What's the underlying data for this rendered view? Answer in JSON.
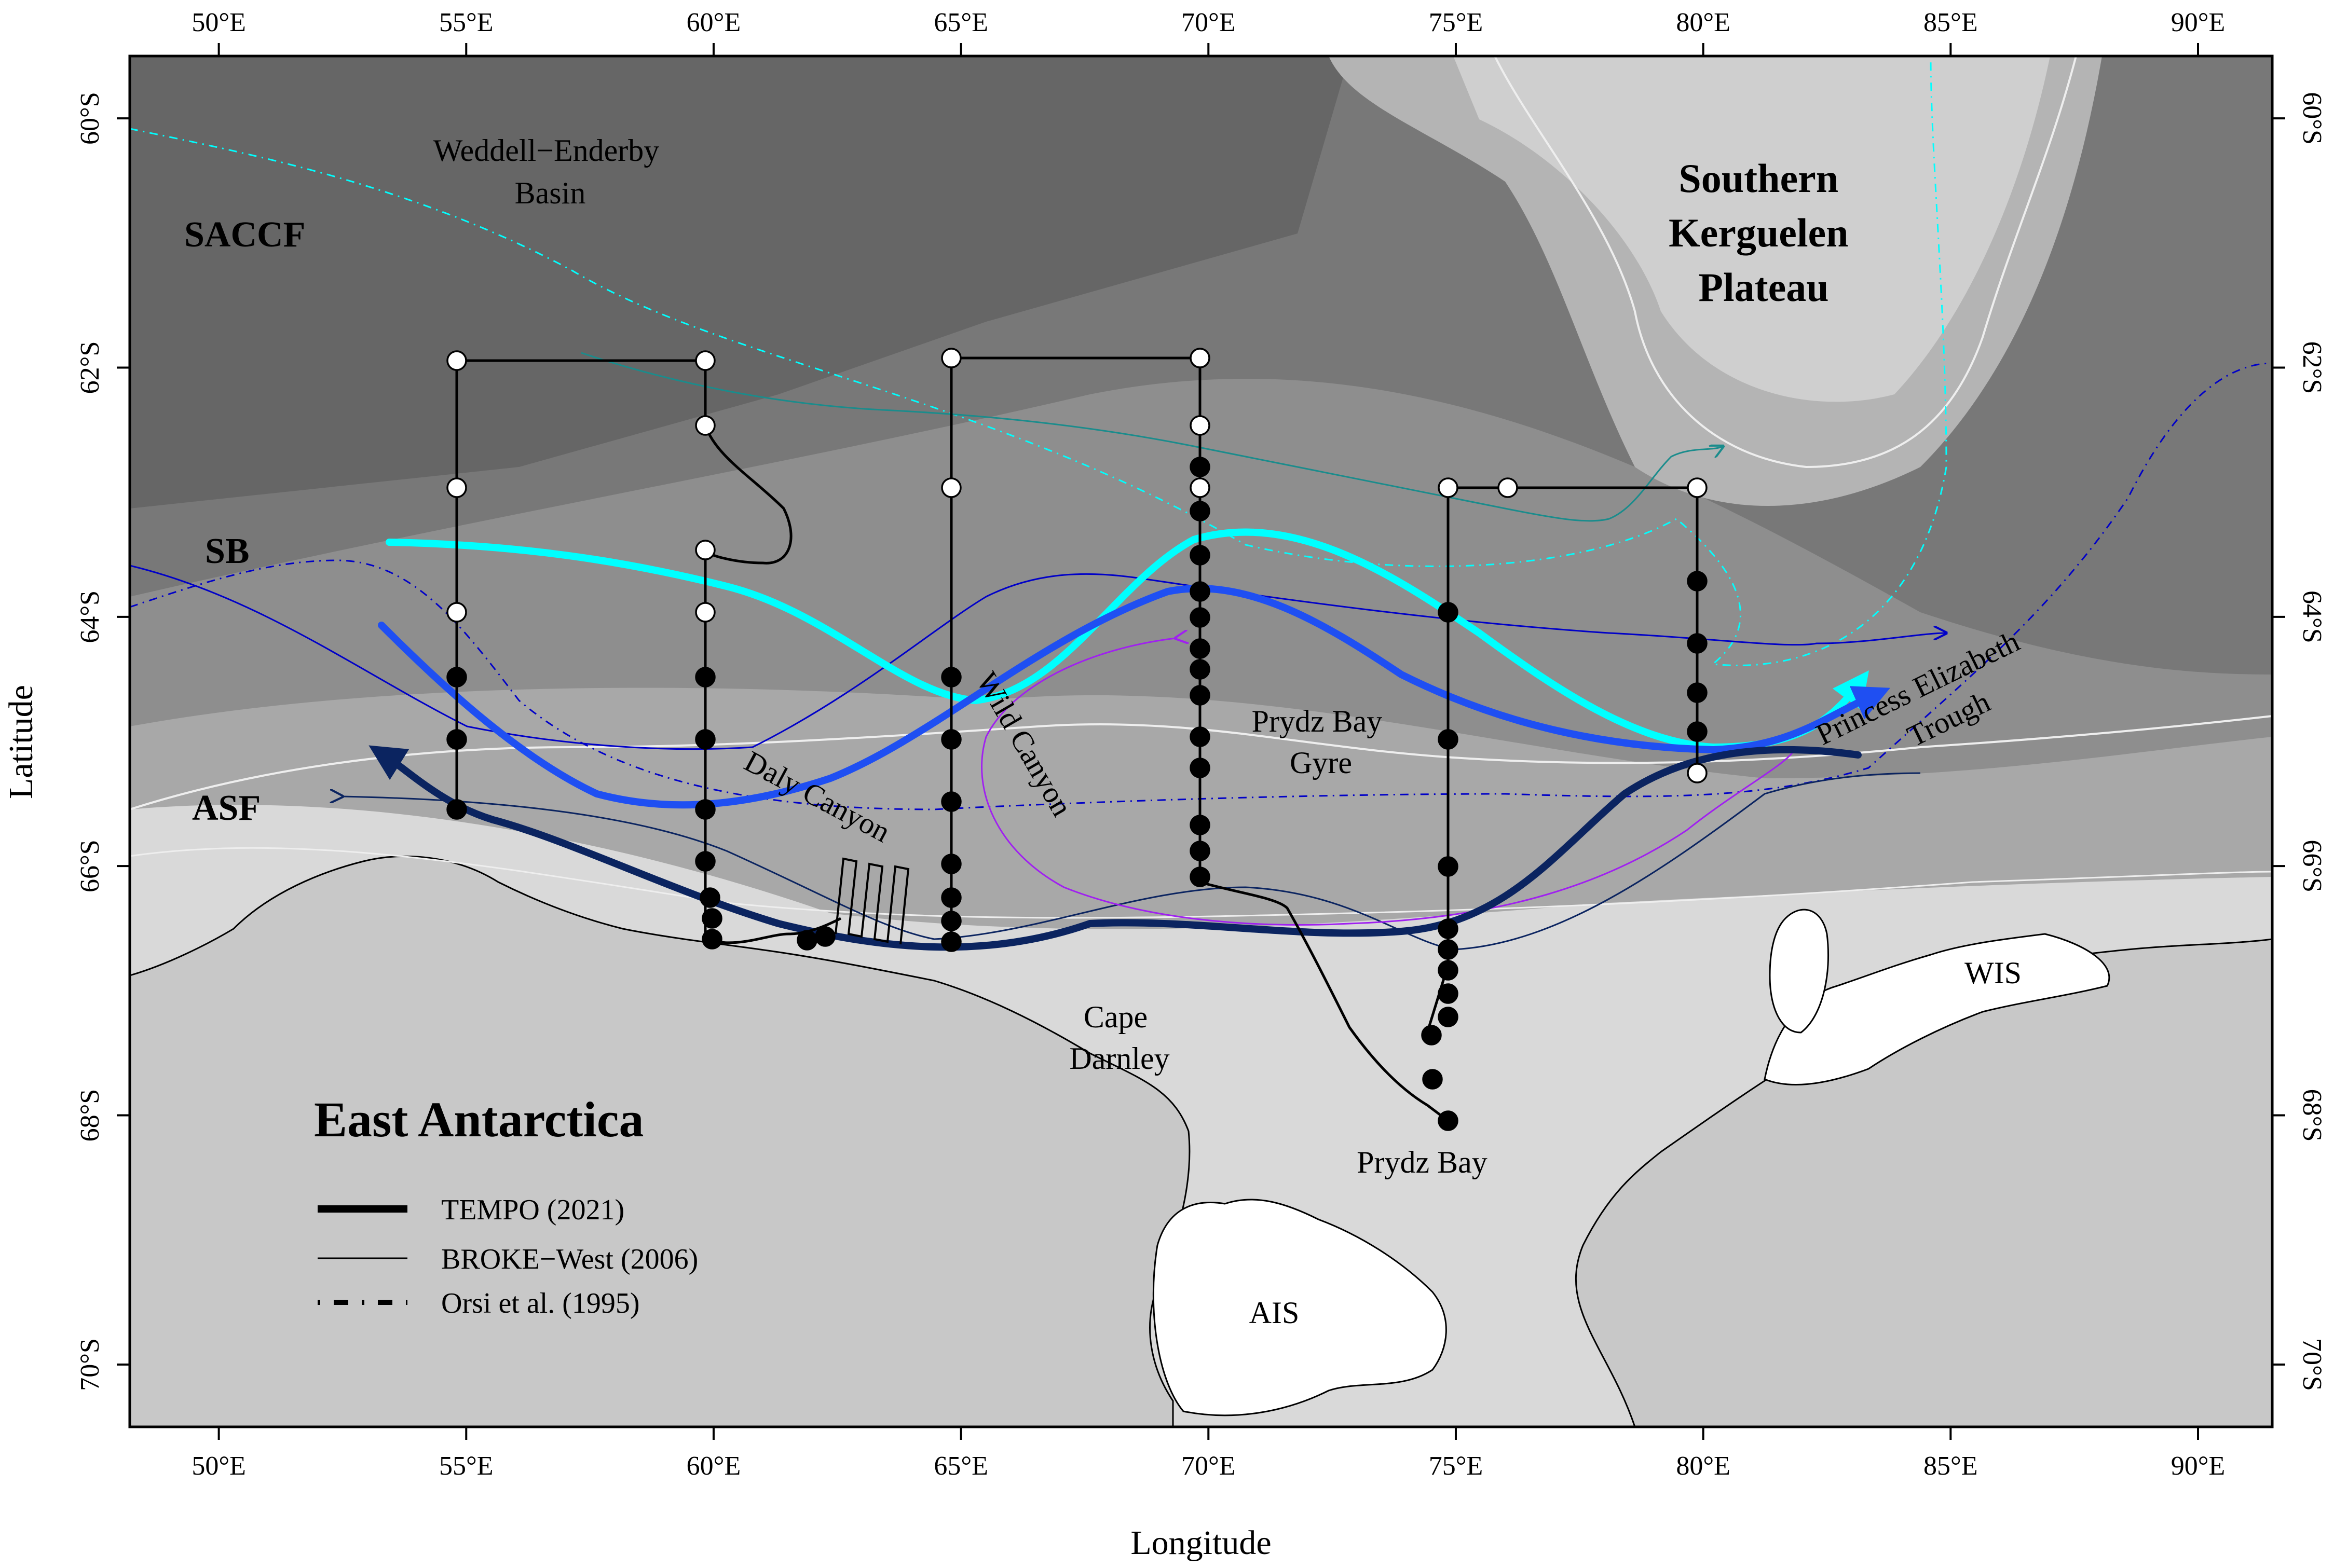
{
  "map": {
    "xlabel": "Longitude",
    "ylabel": "Latitude",
    "lon_range": [
      48.2,
      91.5
    ],
    "lat_range": [
      -70.5,
      -59.5
    ],
    "lon_ticks": [
      50,
      55,
      60,
      65,
      70,
      75,
      80,
      85,
      90
    ],
    "lon_tick_labels": [
      "50°E",
      "55°E",
      "60°E",
      "65°E",
      "70°E",
      "75°E",
      "80°E",
      "85°E",
      "90°E"
    ],
    "lat_ticks": [
      -60,
      -62,
      -64,
      -66,
      -68,
      -70
    ],
    "lat_tick_labels": [
      "60°S",
      "62°S",
      "64°S",
      "66°S",
      "68°S",
      "70°S"
    ],
    "region_title": "East Antarctica",
    "labels": {
      "weddell": [
        "Weddell−Enderby",
        "Basin"
      ],
      "kerguelen": [
        "Southern",
        "Kerguelen",
        "Plateau"
      ],
      "saccf": "SACCF",
      "sb": "SB",
      "asf": "ASF",
      "daly": "Daly Canyon",
      "wild": "Wild Canyon",
      "prydz_gyre": [
        "Prydz Bay",
        "Gyre"
      ],
      "princess": [
        "Princess Elizabeth",
        "Trough"
      ],
      "cape": [
        "Cape",
        "Darnley"
      ],
      "prydz_bay": "Prydz Bay",
      "ais": "AIS",
      "wis": "WIS"
    },
    "legend": [
      {
        "label": "TEMPO (2021)",
        "style": "thick"
      },
      {
        "label": "BROKE−West (2006)",
        "style": "thin"
      },
      {
        "label": "Orsi et al. (1995)",
        "style": "dashdot"
      }
    ],
    "colors": {
      "saccf": "#00ffff",
      "sb": "#1f4ff2",
      "asf": "#0b2460",
      "gyre": "#a020f0",
      "teal": "#1a8c8c",
      "sb_thin": "#0000c8",
      "ocean_deep": "#6e6e6e",
      "land": "#c8c8c8"
    }
  }
}
